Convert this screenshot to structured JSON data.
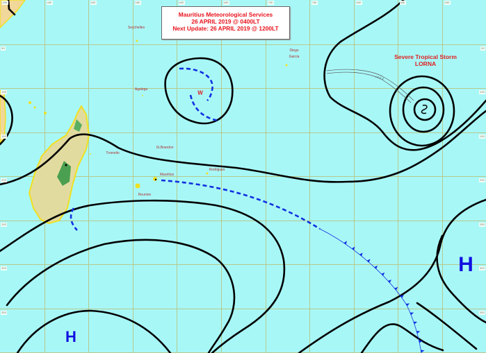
{
  "header": {
    "line1": "Mauritius Meteorological Services",
    "line2": "26 APRIL 2019 @ 0400LT",
    "line3": "Next Update: 26 APRIL 2019 @ 1200LT"
  },
  "storm": {
    "line1": "Severe Tropical Storm",
    "line2": "LORNA"
  },
  "pressure_systems": {
    "high_east": "H",
    "high_southwest": "H",
    "low_w": "W"
  },
  "places": [
    {
      "name": "Seychelles"
    },
    {
      "name": "Agalega"
    },
    {
      "name": "Diego Garcia"
    },
    {
      "name": "St.Brandon"
    },
    {
      "name": "Tromelin"
    },
    {
      "name": "Mauritius"
    },
    {
      "name": "Rodrigues"
    },
    {
      "name": "Reunion"
    }
  ],
  "itcz_label": "I T C Z",
  "grid": {
    "longitudes": [
      "40E",
      "45E",
      "50E",
      "55E",
      "60E",
      "65E",
      "70E",
      "75E",
      "80E",
      "85E",
      "90E"
    ],
    "latitudes": [
      "5S",
      "10S",
      "15S",
      "20S",
      "25S",
      "30S",
      "35S",
      "40S"
    ]
  },
  "colors": {
    "ocean": "#a8f7f7",
    "isobar": "#000000",
    "trough": "#1030e0",
    "cold_front": "#1030e0",
    "title_text": "#e8121b",
    "grid": "#b5c98a",
    "land": "#f2d79a"
  }
}
